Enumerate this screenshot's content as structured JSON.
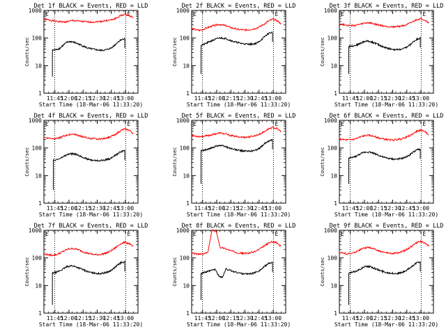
{
  "chart_data": [
    {
      "type": "line",
      "title": "Det 1f BLACK = Events, RED = LLD",
      "xlabel": "Start Time (18-Mar-06 11:33:20)",
      "ylabel": "Counts/sec",
      "xticks": [
        "11:45",
        "12:00",
        "12:15",
        "12:30",
        "12:45",
        "13:00"
      ],
      "yticks": [
        "1",
        "10",
        "100",
        "1000"
      ],
      "ylim": [
        1,
        1000
      ],
      "yscale": "log",
      "xlim_min": [
        0,
        100
      ],
      "flag_label": "E",
      "markers_min": [
        11.5,
        87
      ],
      "series": [
        {
          "color": "#ff0000",
          "start_min": 0,
          "values": [
            480,
            460,
            430,
            400,
            390,
            380,
            400,
            430,
            420,
            400,
            390,
            380,
            380,
            390,
            400,
            420,
            440,
            470,
            540,
            660,
            720,
            650,
            560
          ]
        },
        {
          "color": "#000000",
          "start_min": 9,
          "start_low": 4,
          "values": [
            36,
            38,
            42,
            55,
            70,
            75,
            70,
            62,
            55,
            48,
            42,
            40,
            38,
            36,
            36,
            38,
            42,
            52,
            70,
            88,
            95
          ]
        }
      ]
    },
    {
      "type": "line",
      "title": "Det 2f BLACK = Events, RED = LLD",
      "xlabel": "Start Time (18-Mar-06 11:33:20)",
      "ylabel": "Counts/sec",
      "xticks": [
        "11:45",
        "12:00",
        "12:15",
        "12:30",
        "12:45",
        "13:00"
      ],
      "yticks": [
        "1",
        "10",
        "100",
        "1000"
      ],
      "ylim": [
        1,
        1000
      ],
      "yscale": "log",
      "xlim_min": [
        0,
        100
      ],
      "flag_label": "E",
      "markers_min": [
        11.5,
        87
      ],
      "series": [
        {
          "color": "#ff0000",
          "start_min": 0,
          "values": [
            220,
            200,
            190,
            210,
            240,
            270,
            300,
            310,
            290,
            260,
            230,
            210,
            200,
            195,
            200,
            210,
            230,
            270,
            330,
            420,
            480,
            430,
            330
          ]
        },
        {
          "color": "#000000",
          "start_min": 10,
          "start_low": 5,
          "values": [
            55,
            60,
            70,
            80,
            90,
            100,
            100,
            95,
            85,
            75,
            70,
            65,
            62,
            60,
            60,
            62,
            70,
            90,
            120,
            150,
            160
          ]
        }
      ]
    },
    {
      "type": "line",
      "title": "Det 3f BLACK = Events, RED = LLD",
      "xlabel": "Start Time (18-Mar-06 11:33:20)",
      "ylabel": "Counts/sec",
      "xticks": [
        "11:45",
        "12:00",
        "12:15",
        "12:30",
        "12:45",
        "13:00"
      ],
      "yticks": [
        "1",
        "10",
        "100",
        "1000"
      ],
      "ylim": [
        1,
        1000
      ],
      "yscale": "log",
      "xlim_min": [
        0,
        100
      ],
      "flag_label": "E",
      "markers_min": [
        11.5,
        87
      ],
      "series": [
        {
          "color": "#ff0000",
          "start_min": 0,
          "values": [
            320,
            310,
            290,
            280,
            290,
            310,
            340,
            360,
            340,
            310,
            290,
            270,
            260,
            255,
            260,
            270,
            290,
            320,
            380,
            460,
            500,
            450,
            360
          ]
        },
        {
          "color": "#000000",
          "start_min": 10,
          "start_low": 5,
          "values": [
            50,
            52,
            55,
            62,
            72,
            78,
            75,
            68,
            60,
            52,
            46,
            42,
            40,
            38,
            38,
            40,
            45,
            55,
            72,
            90,
            100
          ]
        }
      ]
    },
    {
      "type": "line",
      "title": "Det 4f BLACK = Events, RED = LLD",
      "xlabel": "Start Time (18-Mar-06 11:33:20)",
      "ylabel": "Counts/sec",
      "xticks": [
        "11:45",
        "12:00",
        "12:15",
        "12:30",
        "12:45",
        "13:00"
      ],
      "yticks": [
        "1",
        "10",
        "100",
        "1000"
      ],
      "ylim": [
        1,
        1000
      ],
      "yscale": "log",
      "xlim_min": [
        0,
        100
      ],
      "flag_label": "E",
      "markers_min": [
        11.5,
        87
      ],
      "series": [
        {
          "color": "#ff0000",
          "start_min": 0,
          "values": [
            240,
            230,
            220,
            225,
            240,
            270,
            300,
            320,
            300,
            270,
            245,
            225,
            215,
            210,
            215,
            225,
            245,
            280,
            340,
            430,
            490,
            440,
            340
          ]
        },
        {
          "color": "#000000",
          "start_min": 10,
          "start_low": 3,
          "values": [
            35,
            38,
            42,
            50,
            58,
            62,
            60,
            55,
            48,
            42,
            38,
            36,
            35,
            35,
            36,
            38,
            42,
            50,
            62,
            75,
            80
          ]
        }
      ]
    },
    {
      "type": "line",
      "title": "Det 5f BLACK = Events, RED = LLD",
      "xlabel": "Start Time (18-Mar-06 11:33:20)",
      "ylabel": "Counts/sec",
      "xticks": [
        "11:45",
        "12:00",
        "12:15",
        "12:30",
        "12:45",
        "13:00"
      ],
      "yticks": [
        "1",
        "10",
        "100",
        "1000"
      ],
      "ylim": [
        1,
        1000
      ],
      "yscale": "log",
      "xlim_min": [
        0,
        100
      ],
      "flag_label": "E",
      "markers_min": [
        11.5,
        87
      ],
      "series": [
        {
          "color": "#ff0000",
          "start_min": 0,
          "values": [
            280,
            270,
            260,
            265,
            280,
            300,
            330,
            350,
            330,
            300,
            275,
            260,
            250,
            245,
            250,
            265,
            290,
            330,
            400,
            500,
            560,
            500,
            400
          ]
        },
        {
          "color": "#000000",
          "start_min": 10,
          "start_low": 5,
          "values": [
            80,
            85,
            90,
            100,
            115,
            125,
            120,
            110,
            100,
            90,
            85,
            80,
            78,
            76,
            78,
            82,
            92,
            115,
            150,
            185,
            200
          ]
        }
      ]
    },
    {
      "type": "line",
      "title": "Det 6f BLACK = Events, RED = LLD",
      "xlabel": "Start Time (18-Mar-06 11:33:20)",
      "ylabel": "Counts/sec",
      "xticks": [
        "11:45",
        "12:00",
        "12:15",
        "12:30",
        "12:45",
        "13:00"
      ],
      "yticks": [
        "1",
        "10",
        "100",
        "1000"
      ],
      "ylim": [
        1,
        1000
      ],
      "yscale": "log",
      "xlim_min": [
        0,
        100
      ],
      "flag_label": "E",
      "markers_min": [
        11.5,
        87
      ],
      "series": [
        {
          "color": "#ff0000",
          "start_min": 0,
          "values": [
            210,
            200,
            195,
            200,
            215,
            245,
            275,
            290,
            275,
            250,
            225,
            210,
            200,
            195,
            200,
            210,
            230,
            265,
            320,
            400,
            440,
            400,
            310
          ]
        },
        {
          "color": "#000000",
          "start_min": 10,
          "start_low": 5,
          "values": [
            42,
            45,
            50,
            58,
            68,
            72,
            70,
            64,
            57,
            50,
            45,
            42,
            40,
            39,
            40,
            42,
            47,
            56,
            70,
            85,
            90
          ]
        }
      ]
    },
    {
      "type": "line",
      "title": "Det 7f BLACK = Events, RED = LLD",
      "xlabel": "Start Time (18-Mar-06 11:33:20)",
      "ylabel": "Counts/sec",
      "xticks": [
        "11:45",
        "12:00",
        "12:15",
        "12:30",
        "12:45",
        "13:00"
      ],
      "yticks": [
        "1",
        "10",
        "100",
        "1000"
      ],
      "ylim": [
        1,
        1000
      ],
      "yscale": "log",
      "xlim_min": [
        0,
        100
      ],
      "flag_label": "E",
      "markers_min": [
        11.5,
        87
      ],
      "series": [
        {
          "color": "#ff0000",
          "start_min": 0,
          "values": [
            140,
            130,
            125,
            130,
            150,
            180,
            210,
            220,
            210,
            185,
            160,
            145,
            135,
            130,
            135,
            145,
            165,
            200,
            260,
            330,
            370,
            330,
            250
          ]
        },
        {
          "color": "#000000",
          "start_min": 9,
          "start_low": 2,
          "values": [
            28,
            30,
            34,
            40,
            48,
            52,
            50,
            45,
            40,
            35,
            31,
            29,
            28,
            27,
            28,
            30,
            34,
            42,
            55,
            68,
            72
          ]
        }
      ]
    },
    {
      "type": "line",
      "title": "Det 8f BLACK = Events, RED = LLD",
      "xlabel": "Start Time (18-Mar-06 11:33:20)",
      "ylabel": "Counts/sec",
      "xticks": [
        "11:45",
        "12:00",
        "12:15",
        "12:30",
        "12:45",
        "13:00"
      ],
      "yticks": [
        "1",
        "10",
        "100",
        "1000"
      ],
      "ylim": [
        1,
        1000
      ],
      "yscale": "log",
      "xlim_min": [
        0,
        100
      ],
      "flag_label": "E",
      "markers_min": [
        11.5,
        87
      ],
      "series": [
        {
          "color": "#ff0000",
          "start_min": 0,
          "values": [
            150,
            140,
            135,
            140,
            160,
            1000,
            1000,
            240,
            225,
            200,
            175,
            160,
            150,
            145,
            150,
            160,
            180,
            220,
            280,
            350,
            390,
            350,
            260
          ]
        },
        {
          "color": "#000000",
          "start_min": 10,
          "start_low": 3,
          "values": [
            28,
            30,
            32,
            36,
            38,
            22,
            20,
            40,
            36,
            32,
            30,
            28,
            27,
            26,
            27,
            29,
            33,
            40,
            52,
            64,
            68
          ]
        }
      ]
    },
    {
      "type": "line",
      "title": "Det 9f BLACK = Events, RED = LLD",
      "xlabel": "Start Time (18-Mar-06 11:33:20)",
      "ylabel": "Counts/sec",
      "xticks": [
        "11:45",
        "12:00",
        "12:15",
        "12:30",
        "12:45",
        "13:00"
      ],
      "yticks": [
        "1",
        "10",
        "100",
        "1000"
      ],
      "ylim": [
        1,
        1000
      ],
      "yscale": "log",
      "xlim_min": [
        0,
        100
      ],
      "flag_label": "E",
      "markers_min": [
        11.5,
        87
      ],
      "series": [
        {
          "color": "#ff0000",
          "start_min": 0,
          "values": [
            160,
            150,
            140,
            145,
            165,
            195,
            225,
            240,
            225,
            200,
            175,
            160,
            150,
            145,
            150,
            160,
            180,
            220,
            280,
            350,
            400,
            360,
            270
          ]
        },
        {
          "color": "#000000",
          "start_min": 10,
          "start_low": 2,
          "values": [
            28,
            30,
            33,
            38,
            45,
            50,
            48,
            43,
            38,
            34,
            31,
            29,
            28,
            27,
            28,
            30,
            34,
            42,
            54,
            66,
            72
          ]
        }
      ]
    }
  ]
}
